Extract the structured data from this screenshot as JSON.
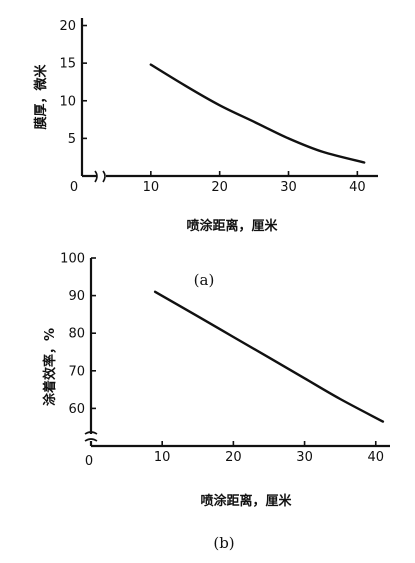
{
  "chart_data": [
    {
      "type": "line",
      "caption": "(a)",
      "xlabel": "喷涂距离，厘米",
      "ylabel": "膜厚，微米",
      "origin_label": "0",
      "xlim": [
        0,
        43
      ],
      "ylim": [
        0,
        21
      ],
      "x_break": true,
      "x_ticks": [
        10,
        20,
        30,
        40
      ],
      "y_ticks": [
        5,
        10,
        15,
        20
      ],
      "series": [
        {
          "x": [
            10,
            15,
            20,
            25,
            30,
            35,
            41
          ],
          "y": [
            14.8,
            12.0,
            9.4,
            7.2,
            5.0,
            3.2,
            1.8
          ]
        }
      ]
    },
    {
      "type": "line",
      "caption": "(b)",
      "xlabel": "喷涂距离，厘米",
      "ylabel": "涂着效率，%",
      "origin_label": "0",
      "xlim": [
        0,
        42
      ],
      "ylim": [
        50,
        100
      ],
      "y_break": true,
      "x_ticks": [
        10,
        20,
        30,
        40
      ],
      "y_ticks": [
        60,
        70,
        80,
        90,
        100
      ],
      "series": [
        {
          "x": [
            9,
            15,
            20,
            25,
            30,
            35,
            41
          ],
          "y": [
            91,
            84.5,
            79,
            73.5,
            68,
            62.5,
            56.5
          ]
        }
      ]
    }
  ]
}
